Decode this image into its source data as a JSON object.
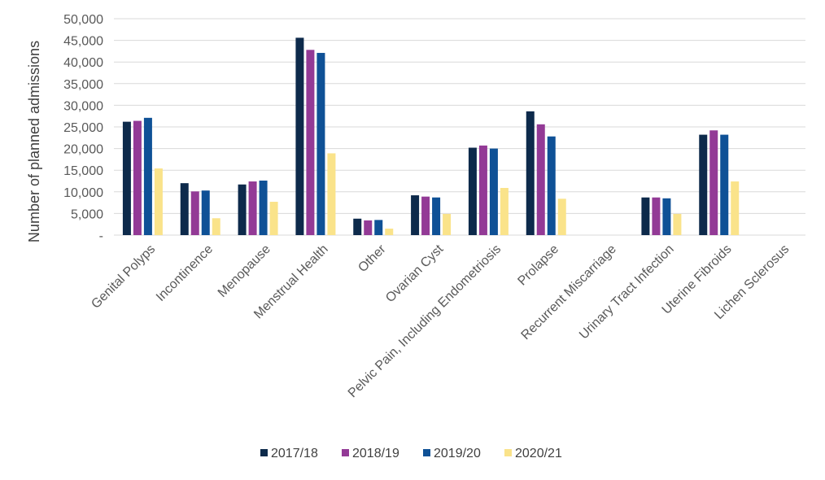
{
  "chart_data": {
    "type": "bar",
    "title": "",
    "xlabel": "",
    "ylabel": "Number of planned admissions",
    "ylim": [
      0,
      50000
    ],
    "yticks": [
      0,
      5000,
      10000,
      15000,
      20000,
      25000,
      30000,
      35000,
      40000,
      45000,
      50000
    ],
    "ytick_labels": [
      "-",
      "5,000",
      "10,000",
      "15,000",
      "20,000",
      "25,000",
      "30,000",
      "35,000",
      "40,000",
      "45,000",
      "50,000"
    ],
    "grid": true,
    "legend_position": "bottom",
    "categories": [
      "Genital Polyps",
      "Incontinence",
      "Menopause",
      "Menstrual Health",
      "Other",
      "Ovarian Cyst",
      "Pelvic Pain, Including Endometriosis",
      "Prolapse",
      "Recurrent Miscarriage",
      "Urinary Tract Infection",
      "Uterine Fibroids",
      "Lichen Sclerosus"
    ],
    "series": [
      {
        "name": "2017/18",
        "color": "#0d2a4b",
        "values": [
          26200,
          12000,
          11700,
          45600,
          3800,
          9200,
          20200,
          28600,
          0,
          8700,
          23200,
          0
        ]
      },
      {
        "name": "2018/19",
        "color": "#933a96",
        "values": [
          26400,
          10100,
          12400,
          42800,
          3400,
          8900,
          20700,
          25600,
          0,
          8700,
          24200,
          0
        ]
      },
      {
        "name": "2019/20",
        "color": "#0f5196",
        "values": [
          27100,
          10300,
          12600,
          42100,
          3500,
          8700,
          20000,
          22800,
          0,
          8500,
          23200,
          0
        ]
      },
      {
        "name": "2020/21",
        "color": "#fae38a",
        "values": [
          15400,
          3900,
          7700,
          18900,
          1500,
          4900,
          10900,
          8400,
          0,
          4900,
          12400,
          0
        ]
      }
    ]
  }
}
